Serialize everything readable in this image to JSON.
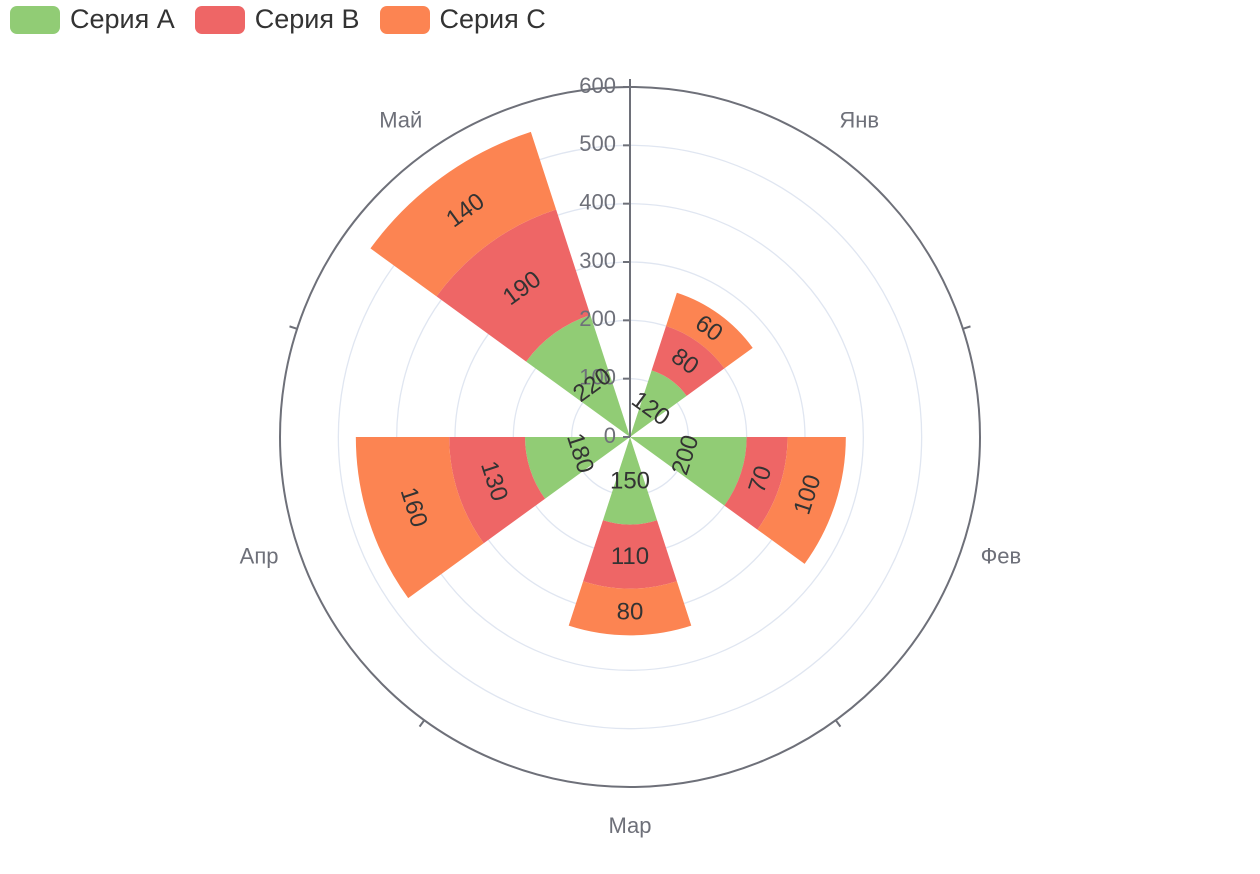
{
  "chart_data": {
    "type": "polar-stacked-bar",
    "categories": [
      "Янв",
      "Фев",
      "Мар",
      "Апр",
      "Май"
    ],
    "series": [
      {
        "name": "Серия A",
        "color": "#91cc75",
        "values": [
          120,
          200,
          150,
          180,
          220
        ]
      },
      {
        "name": "Серия B",
        "color": "#ee6666",
        "values": [
          80,
          70,
          110,
          130,
          190
        ]
      },
      {
        "name": "Серия C",
        "color": "#fc8452",
        "values": [
          60,
          100,
          80,
          160,
          140
        ]
      }
    ],
    "radius_axis": {
      "min": 0,
      "max": 600,
      "interval": 100,
      "tick_labels": [
        "0",
        "100",
        "200",
        "300",
        "400",
        "500",
        "600"
      ]
    },
    "angle_axis": {
      "start_angle_deg": 90,
      "clockwise": true
    },
    "legend": {
      "position": "top-left"
    },
    "grid": true
  }
}
